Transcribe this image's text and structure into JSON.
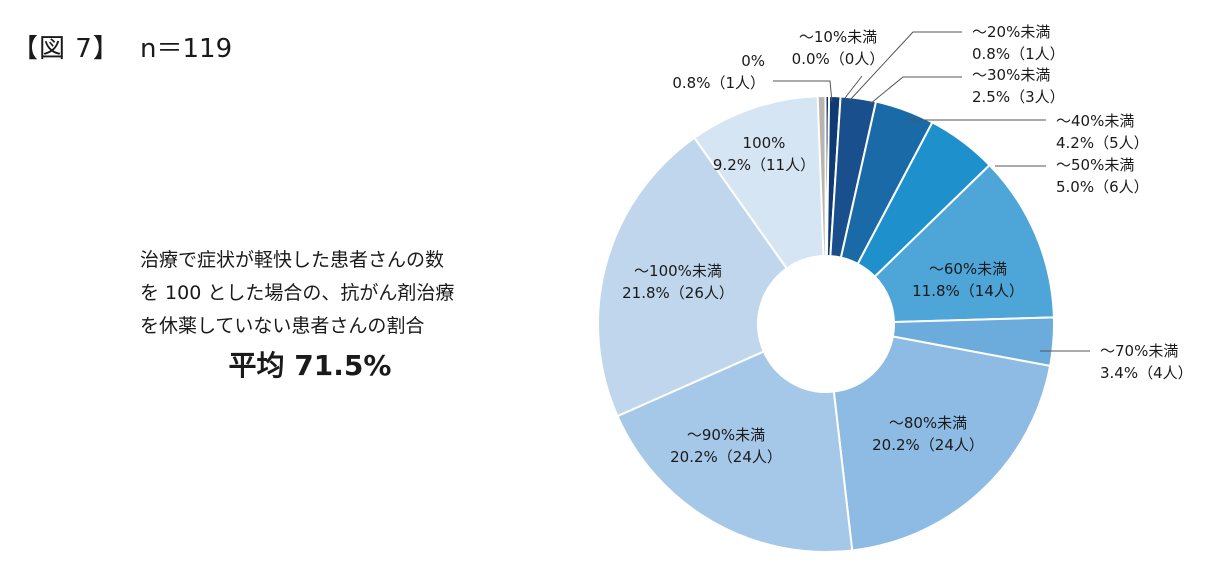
{
  "figure_label": "【図 7】",
  "sample_size": "n＝119",
  "description": [
    "治療で症状が軽快した患者さんの数",
    "を 100 とした場合の、抗がん剤治療",
    "を休薬していない患者さんの割合"
  ],
  "average": "平均 71.5%",
  "chart_data": {
    "type": "pie",
    "donut": true,
    "slices": [
      {
        "label": "0%",
        "value_label": "0.8%（1人）",
        "percent": 0.8,
        "count": 1,
        "color": "#b9b5ae"
      },
      {
        "label": "～10%未満",
        "value_label": "0.0%（0人）",
        "percent": 0.0,
        "count": 0,
        "color": "#0e2f5c"
      },
      {
        "label": "～20%未満",
        "value_label": "0.8%（1人）",
        "percent": 0.8,
        "count": 1,
        "color": "#0f3a73"
      },
      {
        "label": "～30%未満",
        "value_label": "2.5%（3人）",
        "percent": 2.5,
        "count": 3,
        "color": "#1a4f8e"
      },
      {
        "label": "～40%未満",
        "value_label": "4.2%（5人）",
        "percent": 4.2,
        "count": 5,
        "color": "#1a6aa7"
      },
      {
        "label": "～50%未満",
        "value_label": "5.0%（6人）",
        "percent": 5.0,
        "count": 6,
        "color": "#1e90cc"
      },
      {
        "label": "～60%未満",
        "value_label": "11.8%（14人）",
        "percent": 11.8,
        "count": 14,
        "color": "#4ea5d8"
      },
      {
        "label": "～70%未満",
        "value_label": "3.4%（4人）",
        "percent": 3.4,
        "count": 4,
        "color": "#6cacdc"
      },
      {
        "label": "～80%未満",
        "value_label": "20.2%（24人）",
        "percent": 20.2,
        "count": 24,
        "color": "#8dbbe3"
      },
      {
        "label": "～90%未満",
        "value_label": "20.2%（24人）",
        "percent": 20.2,
        "count": 24,
        "color": "#a6c8e8"
      },
      {
        "label": "～100%未満",
        "value_label": "21.8%（26人）",
        "percent": 21.8,
        "count": 26,
        "color": "#bfd6ed"
      },
      {
        "label": "100%",
        "value_label": "9.2%（11人）",
        "percent": 9.2,
        "count": 11,
        "color": "#d6e5f4"
      }
    ]
  }
}
